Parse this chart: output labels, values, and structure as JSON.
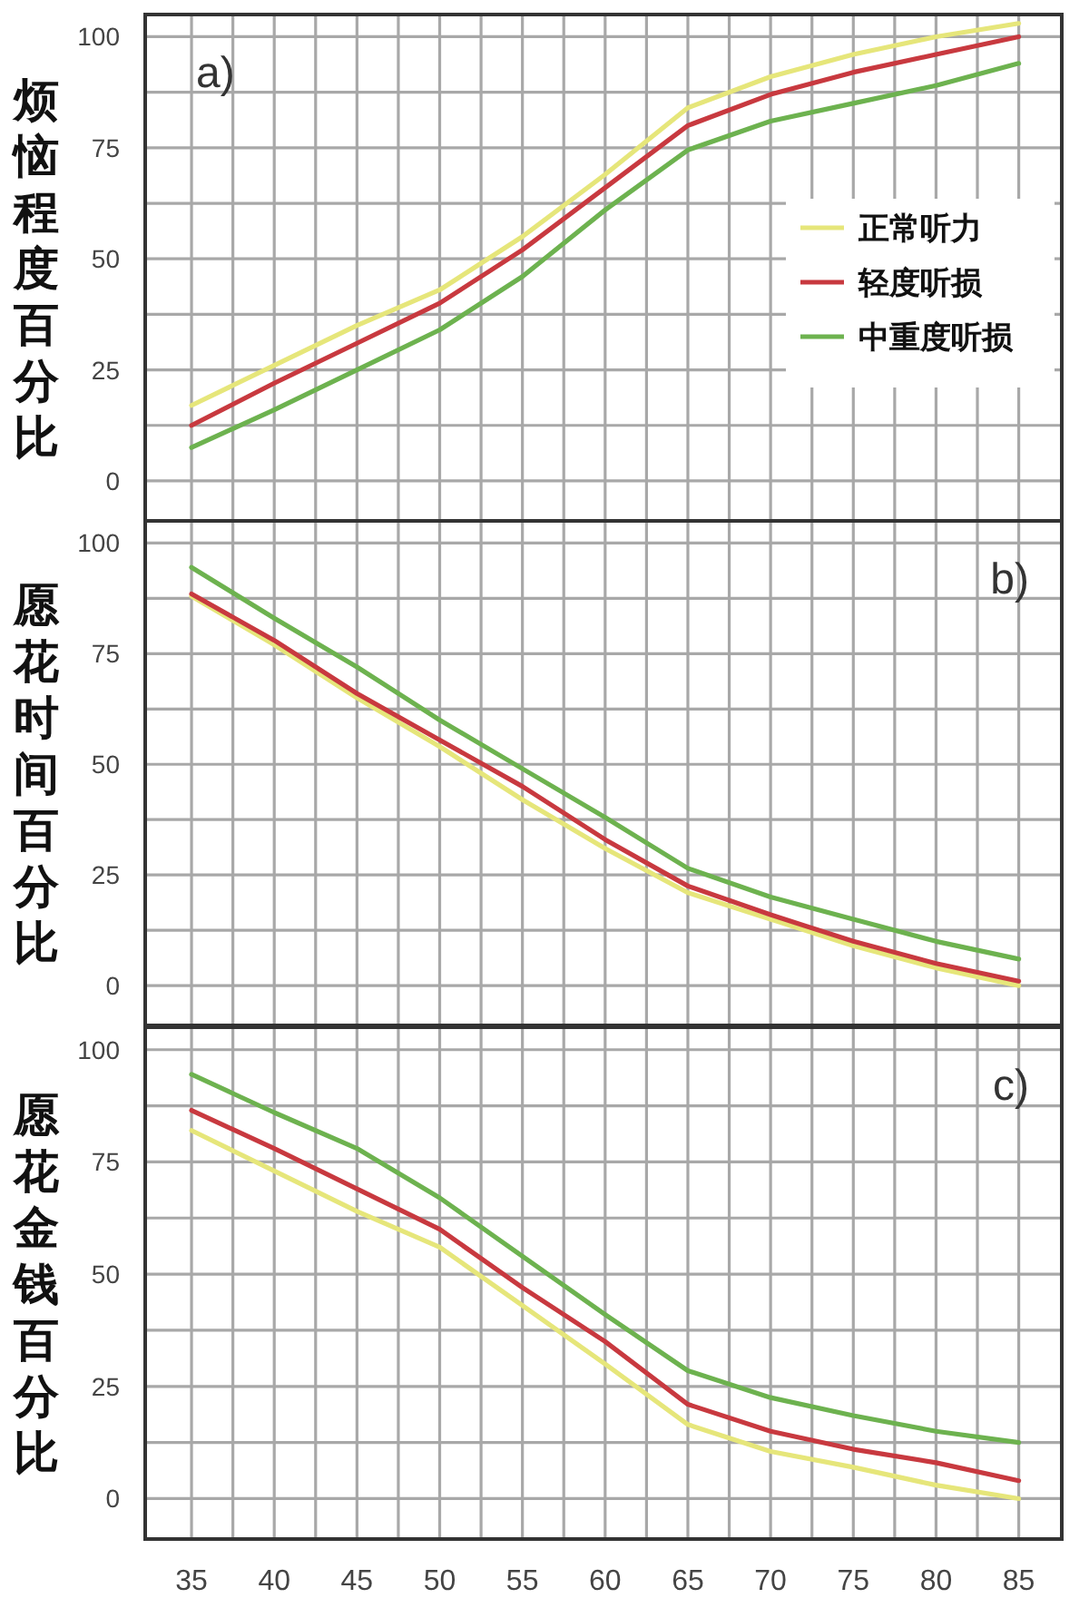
{
  "chart_data": [
    {
      "type": "line",
      "ylabel": "烦恼程度百分比",
      "annotations": [
        "a)"
      ],
      "legend": "right",
      "grid": true,
      "tick_labels": "y",
      "x": [
        35,
        40,
        45,
        50,
        55,
        60,
        65,
        70,
        75,
        80,
        85
      ],
      "xlim": [
        32.2,
        87.6
      ],
      "ylim": [
        -9,
        105
      ],
      "xticks": [
        {
          "value": 35,
          "label": null
        },
        {
          "value": 37.5,
          "label": null
        },
        {
          "value": 40,
          "label": null
        },
        {
          "value": 42.5,
          "label": null
        },
        {
          "value": 45,
          "label": null
        },
        {
          "value": 47.5,
          "label": null
        },
        {
          "value": 50,
          "label": null
        },
        {
          "value": 52.5,
          "label": null
        },
        {
          "value": 55,
          "label": null
        },
        {
          "value": 57.5,
          "label": null
        },
        {
          "value": 60,
          "label": null
        },
        {
          "value": 62.5,
          "label": null
        },
        {
          "value": 65,
          "label": null
        },
        {
          "value": 67.5,
          "label": null
        },
        {
          "value": 70,
          "label": null
        },
        {
          "value": 72.5,
          "label": null
        },
        {
          "value": 75,
          "label": null
        },
        {
          "value": 77.5,
          "label": null
        },
        {
          "value": 80,
          "label": null
        },
        {
          "value": 82.5,
          "label": null
        },
        {
          "value": 85,
          "label": null
        }
      ],
      "yticks": [
        0,
        {
          "value": 12.5,
          "label": null
        },
        25,
        {
          "value": 37.5,
          "label": null
        },
        50,
        {
          "value": 62.5,
          "label": null
        },
        75,
        {
          "value": 87.5,
          "label": null
        },
        100
      ],
      "series": [
        {
          "name": "正常听力",
          "color": "#e6e67a",
          "values": [
            17,
            26,
            35,
            43,
            55,
            69,
            84,
            91,
            96,
            100,
            103
          ]
        },
        {
          "name": "轻度听损",
          "color": "#c8393f",
          "values": [
            12.5,
            22,
            31,
            40,
            52,
            66,
            80,
            87,
            92,
            96,
            100
          ]
        },
        {
          "name": "中重度听损",
          "color": "#6db24f",
          "values": [
            7.5,
            16,
            25,
            34,
            46,
            61,
            74.5,
            81,
            85,
            89,
            94
          ]
        }
      ]
    },
    {
      "type": "line",
      "ylabel": "愿花时间百分比",
      "annotations": [
        "b)"
      ],
      "grid": true,
      "tick_labels": "y",
      "x": [
        35,
        40,
        45,
        50,
        55,
        60,
        65,
        70,
        75,
        80,
        85
      ],
      "xlim": [
        32.2,
        87.6
      ],
      "ylim": [
        -9,
        105
      ],
      "xticks": [
        {
          "value": 35,
          "label": null
        },
        {
          "value": 37.5,
          "label": null
        },
        {
          "value": 40,
          "label": null
        },
        {
          "value": 42.5,
          "label": null
        },
        {
          "value": 45,
          "label": null
        },
        {
          "value": 47.5,
          "label": null
        },
        {
          "value": 50,
          "label": null
        },
        {
          "value": 52.5,
          "label": null
        },
        {
          "value": 55,
          "label": null
        },
        {
          "value": 57.5,
          "label": null
        },
        {
          "value": 60,
          "label": null
        },
        {
          "value": 62.5,
          "label": null
        },
        {
          "value": 65,
          "label": null
        },
        {
          "value": 67.5,
          "label": null
        },
        {
          "value": 70,
          "label": null
        },
        {
          "value": 72.5,
          "label": null
        },
        {
          "value": 75,
          "label": null
        },
        {
          "value": 77.5,
          "label": null
        },
        {
          "value": 80,
          "label": null
        },
        {
          "value": 82.5,
          "label": null
        },
        {
          "value": 85,
          "label": null
        }
      ],
      "yticks": [
        0,
        {
          "value": 12.5,
          "label": null
        },
        25,
        {
          "value": 37.5,
          "label": null
        },
        50,
        {
          "value": 62.5,
          "label": null
        },
        75,
        {
          "value": 87.5,
          "label": null
        },
        100
      ],
      "series": [
        {
          "color": "#e6e67a",
          "values": [
            88,
            77,
            65,
            54,
            42,
            31,
            21,
            15,
            9,
            4,
            0
          ]
        },
        {
          "color": "#c8393f",
          "values": [
            88.5,
            78,
            66,
            55.5,
            45,
            33,
            22.5,
            16,
            10,
            5,
            1
          ]
        },
        {
          "color": "#6db24f",
          "values": [
            94.5,
            83,
            72,
            60,
            49,
            38,
            26.5,
            20,
            15,
            10,
            6
          ]
        }
      ]
    },
    {
      "type": "line",
      "ylabel": "愿花金钱百分比",
      "annotations": [
        "c)"
      ],
      "grid": true,
      "x": [
        35,
        40,
        45,
        50,
        55,
        60,
        65,
        70,
        75,
        80,
        85
      ],
      "xlim": [
        32.2,
        87.6
      ],
      "ylim": [
        -9,
        105
      ],
      "xticks": [
        35,
        {
          "value": 37.5,
          "label": null
        },
        40,
        {
          "value": 42.5,
          "label": null
        },
        45,
        {
          "value": 47.5,
          "label": null
        },
        50,
        {
          "value": 52.5,
          "label": null
        },
        55,
        {
          "value": 57.5,
          "label": null
        },
        60,
        {
          "value": 62.5,
          "label": null
        },
        65,
        {
          "value": 67.5,
          "label": null
        },
        70,
        {
          "value": 72.5,
          "label": null
        },
        75,
        {
          "value": 77.5,
          "label": null
        },
        80,
        {
          "value": 82.5,
          "label": null
        },
        85
      ],
      "yticks": [
        0,
        {
          "value": 12.5,
          "label": null
        },
        25,
        {
          "value": 37.5,
          "label": null
        },
        50,
        {
          "value": 62.5,
          "label": null
        },
        75,
        {
          "value": 87.5,
          "label": null
        },
        100
      ],
      "series": [
        {
          "color": "#e6e67a",
          "values": [
            82,
            73,
            64,
            56,
            43,
            30,
            16.5,
            10.5,
            7,
            3,
            0
          ]
        },
        {
          "color": "#c8393f",
          "values": [
            86.5,
            78,
            69,
            60,
            47,
            35,
            21,
            15,
            11,
            8,
            4
          ]
        },
        {
          "color": "#6db24f",
          "values": [
            94.5,
            86,
            78,
            67,
            54,
            41,
            28.5,
            22.5,
            18.5,
            15,
            12.5
          ]
        }
      ]
    }
  ]
}
